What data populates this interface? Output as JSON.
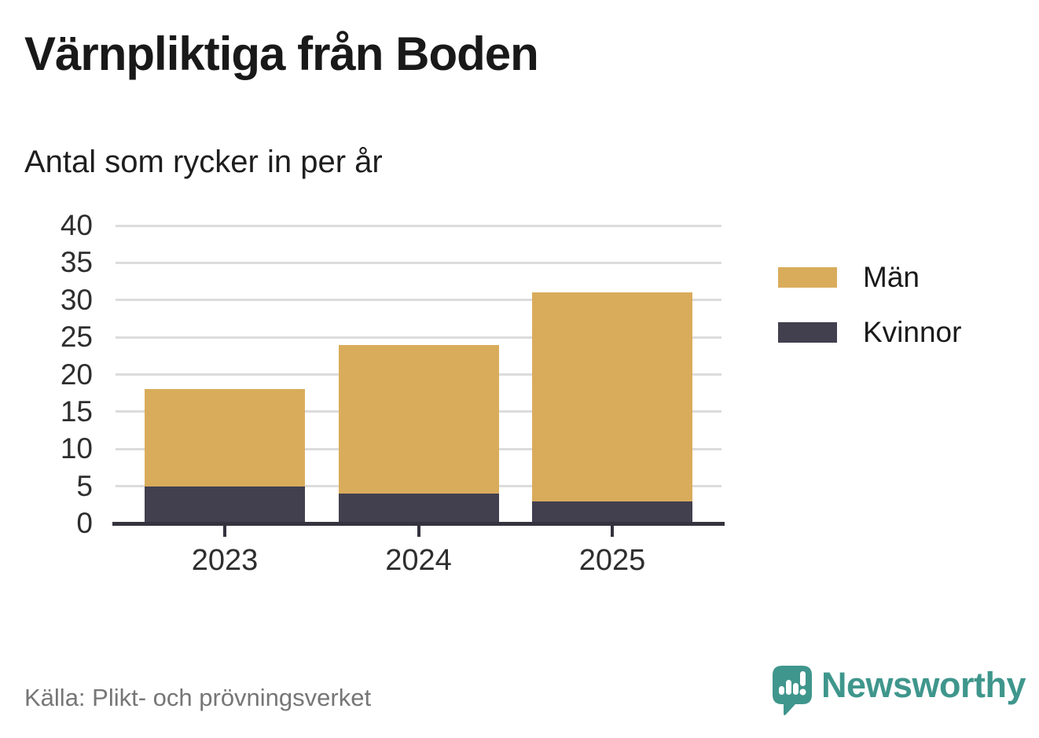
{
  "chart_data": {
    "type": "bar",
    "stacked": true,
    "title": "Värnpliktiga från Boden",
    "subtitle": "Antal som rycker in per år",
    "categories": [
      "2023",
      "2024",
      "2025"
    ],
    "series": [
      {
        "name": "Män",
        "color": "#D9AC5C",
        "values": [
          13,
          20,
          28
        ]
      },
      {
        "name": "Kvinnor",
        "color": "#423F4F",
        "values": [
          5,
          4,
          3
        ]
      }
    ],
    "stack_order_bottom_to_top": [
      "Kvinnor",
      "Män"
    ],
    "totals": [
      18,
      24,
      31
    ],
    "ylim": [
      0,
      40
    ],
    "yticks": [
      0,
      5,
      10,
      15,
      20,
      25,
      30,
      35,
      40
    ],
    "xlabel": "",
    "ylabel": "",
    "grid": "horizontal",
    "legend_position": "right"
  },
  "style": {
    "man_color": "#D9AC5C",
    "kvinnor_color": "#423F4F",
    "grid_color": "#DCDCDC",
    "axis_color": "#35333E",
    "tick_text_color": "#2e2e2e",
    "title_color": "#191919",
    "source_color": "#767676",
    "brand_color": "#3F968C"
  },
  "footer": {
    "source": "Källa: Plikt- och prövningsverket",
    "brand": "Newsworthy",
    "brand_icon": "newsworthy-speech-bubble-barchart-icon"
  }
}
